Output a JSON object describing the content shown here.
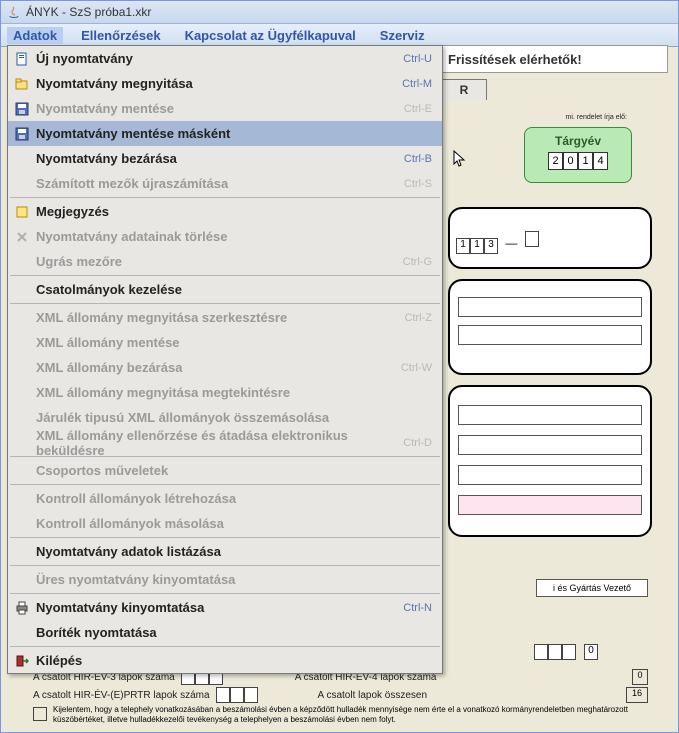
{
  "window": {
    "title": "ÁNYK - SzS próba1.xkr"
  },
  "menubar": {
    "items": [
      "Adatok",
      "Ellenőrzések",
      "Kapcsolat az Ügyfélkapuval",
      "Szerviz"
    ],
    "open_index": 0
  },
  "dropdown": {
    "items": [
      {
        "type": "item",
        "label": "Új nyomtatvány",
        "shortcut": "Ctrl-U",
        "icon": "new-doc",
        "enabled": true
      },
      {
        "type": "item",
        "label": "Nyomtatvány megnyitása",
        "shortcut": "Ctrl-M",
        "icon": "open-doc",
        "enabled": true
      },
      {
        "type": "item",
        "label": "Nyomtatvány mentése",
        "shortcut": "Ctrl-E",
        "icon": "save",
        "enabled": false
      },
      {
        "type": "item",
        "label": "Nyomtatvány mentése másként",
        "shortcut": "",
        "icon": "saveas",
        "enabled": true,
        "highlight": true
      },
      {
        "type": "item",
        "label": "Nyomtatvány bezárása",
        "shortcut": "Ctrl-B",
        "icon": "",
        "enabled": true
      },
      {
        "type": "item",
        "label": "Számított mezők újraszámítása",
        "shortcut": "Ctrl-S",
        "icon": "",
        "enabled": false
      },
      {
        "type": "sep"
      },
      {
        "type": "item",
        "label": "Megjegyzés",
        "shortcut": "",
        "icon": "note",
        "enabled": true
      },
      {
        "type": "item",
        "label": "Nyomtatvány adatainak törlése",
        "shortcut": "",
        "icon": "delete",
        "enabled": false
      },
      {
        "type": "item",
        "label": "Ugrás mezőre",
        "shortcut": "Ctrl-G",
        "icon": "",
        "enabled": false
      },
      {
        "type": "sep"
      },
      {
        "type": "item",
        "label": "Csatolmányok kezelése",
        "shortcut": "",
        "icon": "",
        "enabled": true
      },
      {
        "type": "sep"
      },
      {
        "type": "item",
        "label": "XML állomány megnyitása szerkesztésre",
        "shortcut": "Ctrl-Z",
        "icon": "",
        "enabled": false
      },
      {
        "type": "item",
        "label": "XML állomány mentése",
        "shortcut": "",
        "icon": "",
        "enabled": false
      },
      {
        "type": "item",
        "label": "XML állomány bezárása",
        "shortcut": "Ctrl-W",
        "icon": "",
        "enabled": false
      },
      {
        "type": "item",
        "label": "XML állomány megnyitása megtekintésre",
        "shortcut": "",
        "icon": "",
        "enabled": false
      },
      {
        "type": "item",
        "label": "Járulék tipusú XML állományok összemásolása",
        "shortcut": "",
        "icon": "",
        "enabled": false
      },
      {
        "type": "item",
        "label": "XML állomány ellenőrzése és átadása elektronikus beküldésre",
        "shortcut": "Ctrl-D",
        "icon": "",
        "enabled": false
      },
      {
        "type": "sep"
      },
      {
        "type": "item",
        "label": "Csoportos műveletek",
        "shortcut": "",
        "icon": "",
        "enabled": false
      },
      {
        "type": "sep"
      },
      {
        "type": "item",
        "label": "Kontroll állományok létrehozása",
        "shortcut": "",
        "icon": "",
        "enabled": false
      },
      {
        "type": "item",
        "label": "Kontroll állományok másolása",
        "shortcut": "",
        "icon": "",
        "enabled": false
      },
      {
        "type": "sep"
      },
      {
        "type": "item",
        "label": "Nyomtatvány adatok listázása",
        "shortcut": "",
        "icon": "",
        "enabled": true
      },
      {
        "type": "sep"
      },
      {
        "type": "item",
        "label": "Üres nyomtatvány kinyomtatása",
        "shortcut": "",
        "icon": "",
        "enabled": false
      },
      {
        "type": "sep"
      },
      {
        "type": "item",
        "label": "Nyomtatvány kinyomtatása",
        "shortcut": "Ctrl-N",
        "icon": "print",
        "enabled": true
      },
      {
        "type": "item",
        "label": "Boríték nyomtatása",
        "shortcut": "",
        "icon": "",
        "enabled": true
      },
      {
        "type": "sep"
      },
      {
        "type": "item",
        "label": "Kilépés",
        "shortcut": "",
        "icon": "exit",
        "enabled": true
      }
    ]
  },
  "notice": {
    "text": "Frissítések elérhetők!"
  },
  "tab": {
    "label": "R"
  },
  "targyev": {
    "label": "Tárgyév",
    "digits": [
      "2",
      "0",
      "1",
      "4"
    ]
  },
  "bottom": {
    "hirev3": {
      "label": "A csatolt HIR-EV-3 lapok száma",
      "val": ""
    },
    "hirev4": {
      "label": "A csatolt HIR-EV-4 lapok száma",
      "val": "0"
    },
    "hirevprtr": {
      "label": "A csatolt HIR-ÉV-(E)PRTR lapok száma",
      "val": ""
    },
    "osszesen": {
      "label": "A csatolt lapok összesen",
      "val": "16"
    },
    "declaration": "Kijelentem, hogy a telephely vonatkozásában a beszámolási évben a képződött hulladék mennyisége nem érte el a vonatkozó kormányrendeletben meghatározott küszöbértéket, illetve hulladékkezelői tevékenység a telephelyen a beszámolási évben nem folyt."
  },
  "role": {
    "label": "i és Gyártás Vezető"
  },
  "codes": {
    "triple": [
      "1",
      "1",
      "3"
    ]
  },
  "form_note": "mi. rendelet írja elő:"
}
